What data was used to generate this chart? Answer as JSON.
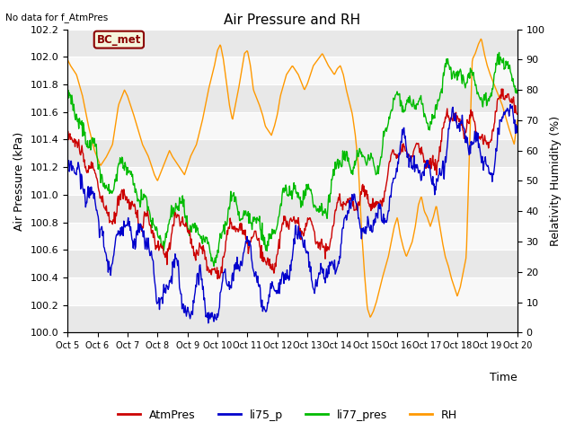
{
  "title": "Air Pressure and RH",
  "top_left_text": "No data for f_AtmPres",
  "station_label": "BC_met",
  "ylabel_left": "Air Pressure (kPa)",
  "ylabel_right": "Relativity Humidity (%)",
  "xlabel": "Time",
  "xlim": [
    5,
    20
  ],
  "ylim_left": [
    100.0,
    102.2
  ],
  "ylim_right": [
    0,
    100
  ],
  "yticks_left": [
    100.0,
    100.2,
    100.4,
    100.6,
    100.8,
    101.0,
    101.2,
    101.4,
    101.6,
    101.8,
    102.0,
    102.2
  ],
  "yticks_right": [
    0,
    10,
    20,
    30,
    40,
    50,
    60,
    70,
    80,
    90,
    100
  ],
  "xtick_labels": [
    "Oct 5",
    "Oct 6",
    "Oct 7",
    "Oct 8",
    "Oct 9",
    "Oct 10",
    "Oct 11",
    "Oct 12",
    "Oct 13",
    "Oct 14",
    "Oct 15",
    "Oct 16",
    "Oct 17",
    "Oct 18",
    "Oct 19",
    "Oct 20"
  ],
  "xtick_positions": [
    5,
    6,
    7,
    8,
    9,
    10,
    11,
    12,
    13,
    14,
    15,
    16,
    17,
    18,
    19,
    20
  ],
  "legend_labels": [
    "AtmPres",
    "li75_p",
    "li77_pres",
    "RH"
  ],
  "color_AtmPres": "#cc0000",
  "color_li75_p": "#0000cc",
  "color_li77_pres": "#00bb00",
  "color_RH": "#ff9900",
  "band_colors": [
    "#e8e8e8",
    "#f8f8f8"
  ],
  "grid_color": "#ffffff",
  "figsize": [
    6.4,
    4.8
  ],
  "dpi": 100
}
